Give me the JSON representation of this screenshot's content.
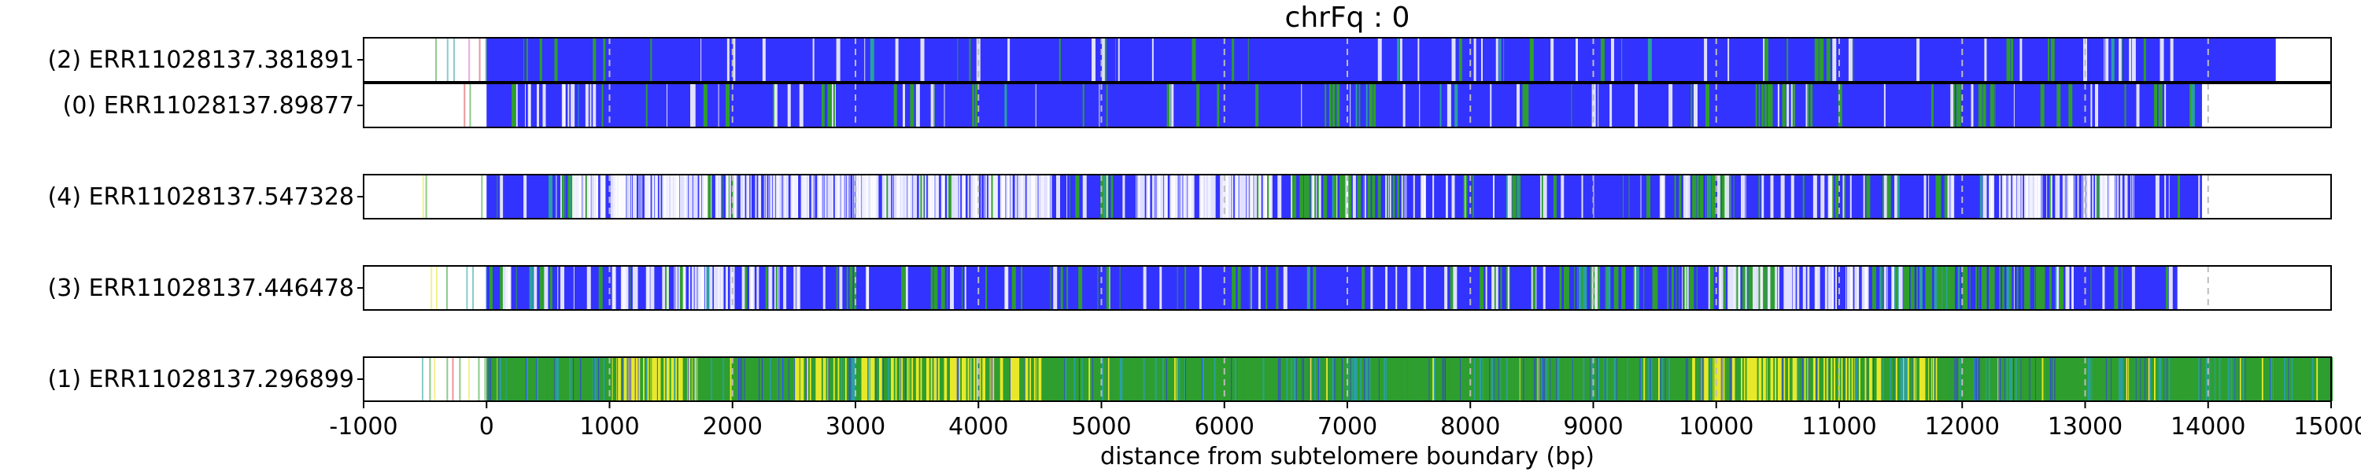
{
  "chart_data": {
    "type": "bar",
    "title": "chrFq : 0",
    "xlabel": "distance from subtelomere boundary (bp)",
    "ylabel": "",
    "xlim": [
      -1000,
      15000
    ],
    "x_ticks": [
      -1000,
      0,
      1000,
      2000,
      3000,
      4000,
      5000,
      6000,
      7000,
      8000,
      9000,
      10000,
      11000,
      12000,
      13000,
      14000,
      15000
    ],
    "grid": "vertical dashed lines every 1000 bp",
    "colors": {
      "main": "#3333ff",
      "green": "#2e9e2e",
      "yellow": "#e8e82a",
      "teal": "#2aa0a0",
      "white": "#ffffff",
      "pink": "#dd66cc",
      "red": "#dd4444",
      "grid": "#bbbbbb",
      "frame": "#000000"
    },
    "reads": [
      {
        "label": "(2) ERR11028137.381891",
        "subtelomere_start": -550,
        "read_end": 14550,
        "green_density": 0.05,
        "yellow_density": 0.0,
        "white_density": 0.05,
        "green_regions": [
          [
            600,
            700
          ],
          [
            10500,
            11000
          ]
        ],
        "yellow_regions": [],
        "white_regions": []
      },
      {
        "label": "(0) ERR11028137.89877",
        "subtelomere_start": -550,
        "read_end": 13950,
        "green_density": 0.07,
        "yellow_density": 0.0,
        "white_density": 0.08,
        "green_regions": [
          [
            600,
            700
          ],
          [
            6800,
            7200
          ],
          [
            10300,
            11000
          ],
          [
            11900,
            12300
          ]
        ],
        "yellow_regions": [],
        "white_regions": [
          [
            300,
            900
          ]
        ]
      },
      {
        "label": "(4) ERR11028137.547328",
        "subtelomere_start": -550,
        "read_end": 13950,
        "green_density": 0.1,
        "yellow_density": 0.0,
        "white_density": 0.22,
        "green_regions": [
          [
            600,
            700
          ],
          [
            4900,
            5100
          ],
          [
            6500,
            7500
          ],
          [
            9800,
            10200
          ]
        ],
        "yellow_regions": [],
        "white_regions": [
          [
            700,
            4600
          ],
          [
            5300,
            6400
          ],
          [
            12200,
            13400
          ]
        ]
      },
      {
        "label": "(3) ERR11028137.446478",
        "subtelomere_start": -550,
        "read_end": 13750,
        "green_density": 0.1,
        "yellow_density": 0.0,
        "white_density": 0.14,
        "green_regions": [
          [
            8800,
            10500
          ],
          [
            11300,
            12800
          ]
        ],
        "yellow_regions": [],
        "white_regions": [
          [
            1000,
            2400
          ],
          [
            10000,
            11500
          ]
        ]
      },
      {
        "label": "(1) ERR11028137.296899",
        "subtelomere_start": -550,
        "read_end": 15000,
        "green_density": 0.4,
        "yellow_density": 0.15,
        "white_density": 0.08,
        "green_regions": [
          [
            0,
            15000
          ]
        ],
        "yellow_regions": [
          [
            1000,
            1700
          ],
          [
            2500,
            4500
          ],
          [
            9800,
            11800
          ]
        ],
        "white_regions": [
          [
            2400,
            3300
          ]
        ]
      }
    ]
  }
}
